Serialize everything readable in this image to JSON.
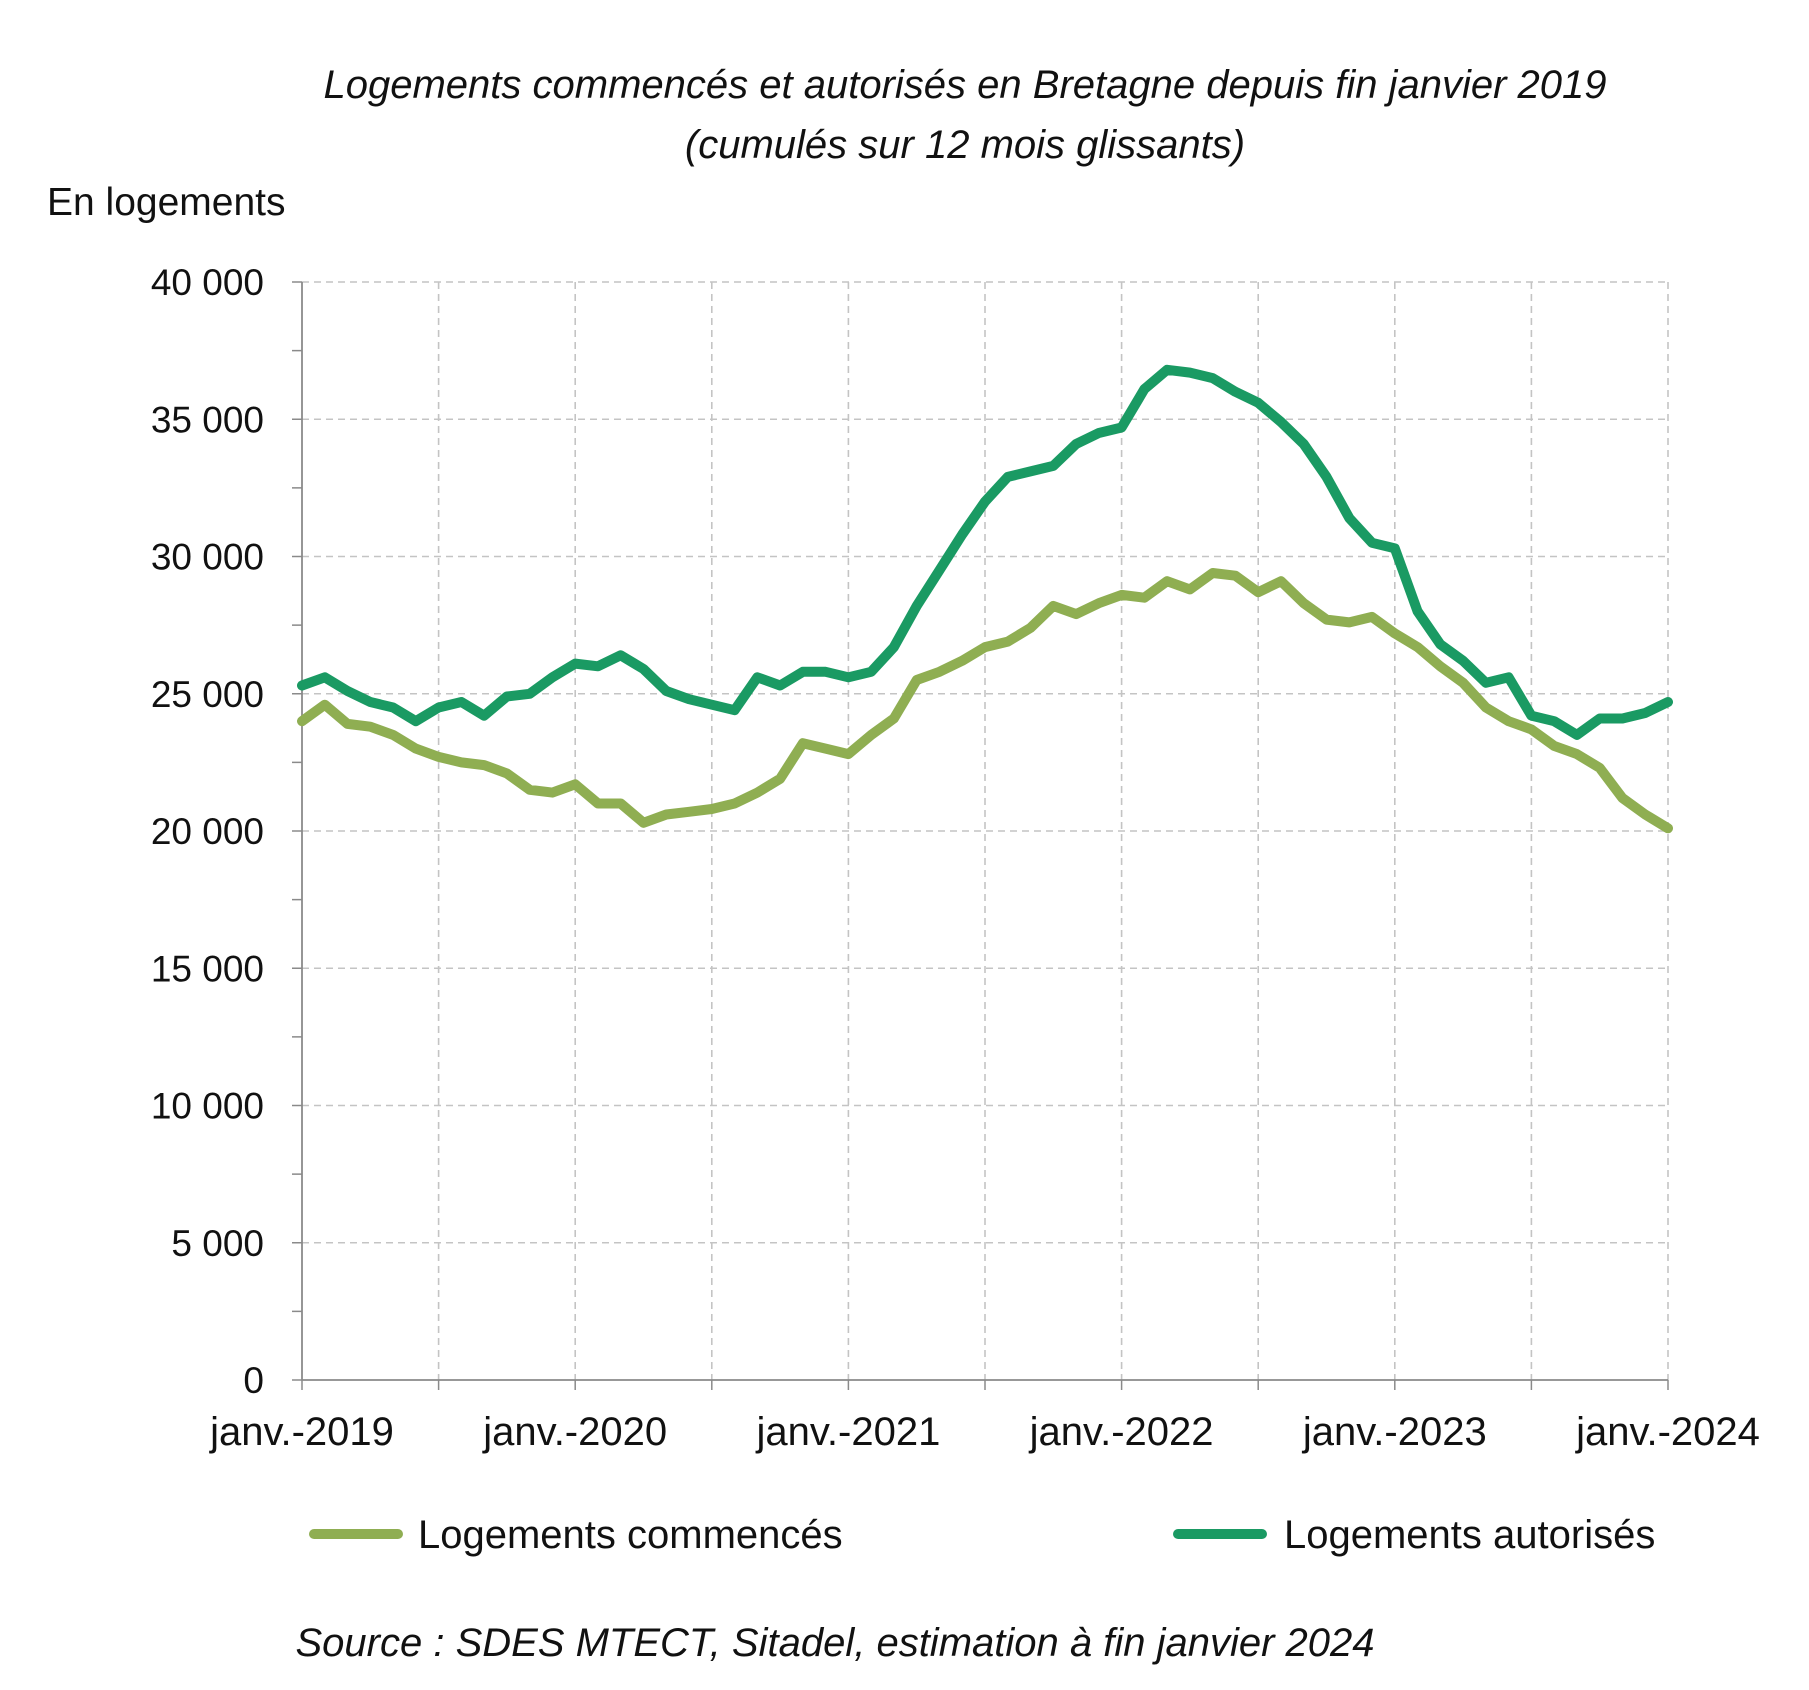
{
  "chart_data": {
    "type": "line",
    "title": "Logements commencés et autorisés en Bretagne depuis fin janvier 2019",
    "subtitle": "(cumulés sur 12 mois glissants)",
    "ylabel": "En logements",
    "xlabel": "",
    "source": "Source : SDES MTECT, Sitadel, estimation à fin janvier 2024",
    "ylim": [
      0,
      40000
    ],
    "yticks": [
      0,
      5000,
      10000,
      15000,
      20000,
      25000,
      30000,
      35000,
      40000
    ],
    "ytick_labels": [
      "0",
      "5 000",
      "10 000",
      "15 000",
      "20 000",
      "25 000",
      "30 000",
      "35 000",
      "40 000"
    ],
    "xlim": [
      "2019-01",
      "2024-01"
    ],
    "xtick_labels": [
      "janv.-2019",
      "janv.-2020",
      "janv.-2021",
      "janv.-2022",
      "janv.-2023",
      "janv.-2024"
    ],
    "grid": true,
    "legend_position": "bottom",
    "x": [
      "2019-01",
      "2019-02",
      "2019-03",
      "2019-04",
      "2019-05",
      "2019-06",
      "2019-07",
      "2019-08",
      "2019-09",
      "2019-10",
      "2019-11",
      "2019-12",
      "2020-01",
      "2020-02",
      "2020-03",
      "2020-04",
      "2020-05",
      "2020-06",
      "2020-07",
      "2020-08",
      "2020-09",
      "2020-10",
      "2020-11",
      "2020-12",
      "2021-01",
      "2021-02",
      "2021-03",
      "2021-04",
      "2021-05",
      "2021-06",
      "2021-07",
      "2021-08",
      "2021-09",
      "2021-10",
      "2021-11",
      "2021-12",
      "2022-01",
      "2022-02",
      "2022-03",
      "2022-04",
      "2022-05",
      "2022-06",
      "2022-07",
      "2022-08",
      "2022-09",
      "2022-10",
      "2022-11",
      "2022-12",
      "2023-01",
      "2023-02",
      "2023-03",
      "2023-04",
      "2023-05",
      "2023-06",
      "2023-07",
      "2023-08",
      "2023-09",
      "2023-10",
      "2023-11",
      "2023-12",
      "2024-01"
    ],
    "series": [
      {
        "name": "Logements commencés",
        "color": "#8fae52",
        "values": [
          24000,
          24600,
          23900,
          23800,
          23500,
          23000,
          22700,
          22500,
          22400,
          22100,
          21500,
          21400,
          21700,
          21000,
          21000,
          20300,
          20600,
          20700,
          20800,
          21000,
          21400,
          21900,
          23200,
          23000,
          22800,
          23500,
          24100,
          25500,
          25800,
          26200,
          26700,
          26900,
          27400,
          28200,
          27900,
          28300,
          28600,
          28500,
          29100,
          28800,
          29400,
          29300,
          28700,
          29100,
          28300,
          27700,
          27600,
          27800,
          27200,
          26700,
          26000,
          25400,
          24500,
          24000,
          23700,
          23100,
          22800,
          22300,
          21200,
          20600,
          20100
        ]
      },
      {
        "name": "Logements autorisés",
        "color": "#1a9a63",
        "values": [
          25300,
          25600,
          25100,
          24700,
          24500,
          24000,
          24500,
          24700,
          24200,
          24900,
          25000,
          25600,
          26100,
          26000,
          26400,
          25900,
          25100,
          24800,
          24600,
          24400,
          25600,
          25300,
          25800,
          25800,
          25600,
          25800,
          26700,
          28200,
          29500,
          30800,
          32000,
          32900,
          33100,
          33300,
          34100,
          34500,
          34700,
          36100,
          36800,
          36700,
          36500,
          36000,
          35600,
          34900,
          34100,
          32900,
          31400,
          30500,
          30300,
          28000,
          26800,
          26200,
          25400,
          25600,
          24200,
          24000,
          23500,
          24100,
          24100,
          24300,
          24700
        ]
      }
    ]
  }
}
